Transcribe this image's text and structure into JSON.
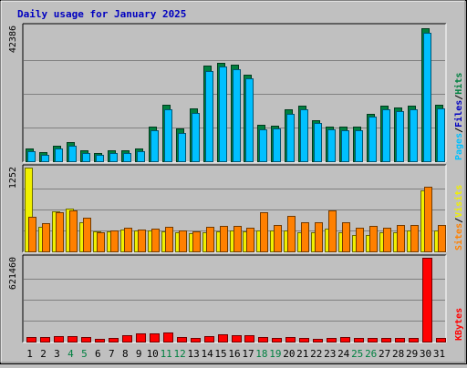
{
  "chart_data": {
    "type": "bar",
    "title": "Daily usage for January 2025",
    "categories": [
      "1",
      "2",
      "3",
      "4",
      "5",
      "6",
      "7",
      "8",
      "9",
      "10",
      "11",
      "12",
      "13",
      "14",
      "15",
      "16",
      "17",
      "18",
      "19",
      "20",
      "21",
      "22",
      "23",
      "24",
      "25",
      "26",
      "27",
      "28",
      "29",
      "30",
      "31"
    ],
    "weekend_days": [
      "4",
      "5",
      "11",
      "12",
      "18",
      "19",
      "25",
      "26"
    ],
    "panels": [
      {
        "id": "hits-files-pages",
        "max_label": "42386",
        "ymax": 42386,
        "legend": [
          {
            "text": "Hits",
            "color": "#008040"
          },
          {
            "text": "/",
            "color": "#000000"
          },
          {
            "text": "Files",
            "color": "#0000c0"
          },
          {
            "text": "/",
            "color": "#000000"
          },
          {
            "text": "Pages",
            "color": "#00c0ff"
          }
        ],
        "series": [
          {
            "name": "Hits",
            "color": "#008040",
            "values": [
              3900,
              2800,
              4800,
              6100,
              3500,
              2700,
              3500,
              3300,
              4000,
              10800,
              17800,
              10400,
              16500,
              30000,
              30800,
              30300,
              27200,
              11500,
              11100,
              16200,
              17600,
              13000,
              10800,
              10800,
              10800,
              15000,
              17600,
              16900,
              17400,
              41700,
              17700
            ]
          },
          {
            "name": "Files",
            "color": "#0000c0",
            "values": [
              3100,
              2000,
              3900,
              4900,
              2700,
              2000,
              2700,
              2500,
              3100,
              9600,
              16200,
              8900,
              15200,
              28400,
              29800,
              28900,
              26200,
              10100,
              10200,
              15000,
              16200,
              11900,
              9900,
              9800,
              9800,
              14000,
              16400,
              15800,
              16300,
              40500,
              16600
            ]
          },
          {
            "name": "Pages",
            "color": "#00c0ff",
            "values": [
              3100,
              2000,
              3900,
              4900,
              2700,
              2000,
              2700,
              2500,
              3100,
              9600,
              16200,
              8900,
              15200,
              28400,
              29800,
              28900,
              26200,
              10100,
              10200,
              15000,
              16200,
              11900,
              9900,
              9800,
              9800,
              14000,
              16400,
              15800,
              16300,
              40500,
              16600
            ]
          }
        ]
      },
      {
        "id": "visits-sites",
        "max_label": "1252",
        "ymax": 1252,
        "legend": [
          {
            "text": "Visits",
            "color": "#f0f000"
          },
          {
            "text": "/",
            "color": "#000000"
          },
          {
            "text": "Sites",
            "color": "#ff8000"
          }
        ],
        "series": [
          {
            "name": "Visits",
            "color": "#f0f000",
            "values": [
              1252,
              370,
              600,
              640,
              430,
              300,
              300,
              320,
              310,
              310,
              300,
              290,
              270,
              280,
              300,
              310,
              300,
              310,
              310,
              310,
              280,
              280,
              340,
              290,
              250,
              250,
              290,
              290,
              310,
              910,
              310
            ]
          },
          {
            "name": "Sites",
            "color": "#ff8000",
            "values": [
              520,
              420,
              580,
              610,
              500,
              290,
              310,
              360,
              320,
              340,
              370,
              310,
              300,
              370,
              380,
              380,
              360,
              590,
              400,
              530,
              430,
              430,
              610,
              440,
              360,
              380,
              360,
              390,
              400,
              970,
              400
            ]
          }
        ]
      },
      {
        "id": "kbytes",
        "max_label": "621460",
        "ymax": 621460,
        "legend": [
          {
            "text": "KBytes",
            "color": "#ff0000"
          }
        ],
        "series": [
          {
            "name": "KBytes",
            "color": "#ff0000",
            "values": [
              34000,
              32000,
              40000,
              43000,
              35000,
              20000,
              26000,
              50000,
              62000,
              63000,
              66000,
              36000,
              30000,
              38000,
              52000,
              48000,
              44000,
              34000,
              30000,
              36000,
              24000,
              22000,
              28000,
              34000,
              26000,
              24000,
              28000,
              30000,
              28000,
              621460,
              26000
            ]
          }
        ]
      }
    ]
  }
}
